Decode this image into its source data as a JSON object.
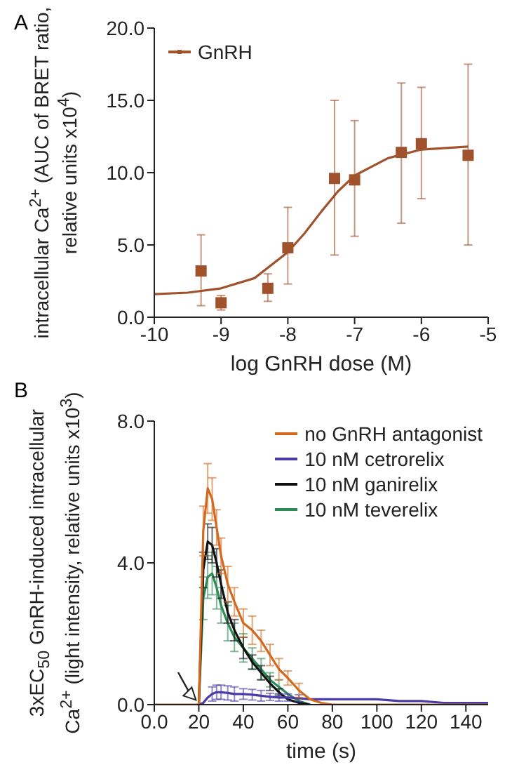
{
  "chart_data": [
    {
      "type": "scatter",
      "title": "A",
      "xlabel": "log GnRH dose (M)",
      "ylabel": "intracellular Ca$^{2+}$ (AUC of BRET ratio, relative units x10$^{4}$)",
      "xlim": [
        -10,
        -5
      ],
      "xticks": [
        -10,
        -9,
        -8,
        -7,
        -6,
        -5
      ],
      "ylim": [
        0,
        20
      ],
      "yticks": [
        {
          "value": 0,
          "label": "0.0"
        },
        {
          "value": 5,
          "label": "5.0"
        },
        {
          "value": 10,
          "label": "10.0"
        },
        {
          "value": 15,
          "label": "15.0"
        },
        {
          "value": 20,
          "label": "20.0"
        }
      ],
      "marker": "square",
      "legend": "top left",
      "series": [
        {
          "type": "line",
          "marker": "none",
          "color": "#a0522d",
          "x": [
            -10,
            -9.5,
            -9,
            -8.5,
            -8,
            -7.75,
            -7.5,
            -7.25,
            -7,
            -6.5,
            -6,
            -5.3
          ],
          "values": [
            1.6,
            1.7,
            2.0,
            2.7,
            4.5,
            5.8,
            7.3,
            8.7,
            9.8,
            11.0,
            11.6,
            11.8
          ]
        },
        {
          "name": "GnRH",
          "color": "#a0522d",
          "x": [
            -9.3,
            -9,
            -8.3,
            -8,
            -7.3,
            -7,
            -6.3,
            -6,
            -5.3
          ],
          "values": [
            3.2,
            1.0,
            2.0,
            4.8,
            9.6,
            9.5,
            11.4,
            12.0,
            11.2
          ],
          "errors": [
            [
              0.8,
              5.7
            ],
            [
              0.5,
              1.5
            ],
            [
              1.1,
              3.0
            ],
            [
              2.3,
              7.6
            ],
            [
              4.3,
              15.0
            ],
            [
              5.6,
              13.6
            ],
            [
              6.5,
              16.2
            ],
            [
              8.2,
              15.9
            ],
            [
              5.0,
              17.5
            ]
          ]
        }
      ]
    },
    {
      "type": "line",
      "title": "B",
      "xlabel": "time (s)",
      "ylabel": "3xEC$_{50}$ GnRH-induced intracellular Ca$^{2+}$ (light intensity, relative units x10$^{3}$)",
      "xlim": [
        0,
        150
      ],
      "xticks": [
        {
          "value": 0,
          "label": "0.0"
        },
        20,
        40,
        60,
        80,
        100,
        120,
        140
      ],
      "ylim": [
        0,
        8
      ],
      "yticks": [
        {
          "value": 0,
          "label": "0.0"
        },
        {
          "value": 4,
          "label": "4.0"
        },
        {
          "value": 8,
          "label": "8.0"
        }
      ],
      "marker": "none",
      "legend": "top right",
      "x": [
        0,
        5,
        10,
        15,
        20,
        22,
        24,
        26,
        28,
        30,
        33,
        36,
        40,
        44,
        48,
        52,
        56,
        60,
        65,
        70,
        75,
        80,
        90,
        100,
        110,
        120,
        130,
        140,
        150
      ],
      "series": [
        {
          "name": "no GnRH antagonist",
          "color": "#d2691e",
          "values": [
            0,
            0,
            0,
            0,
            0,
            4.9,
            6.1,
            5.8,
            5.0,
            4.2,
            3.4,
            2.9,
            2.3,
            2.1,
            1.8,
            1.4,
            1.0,
            0.75,
            0.4,
            0.15,
            0.05,
            0,
            0,
            0,
            0,
            0,
            0,
            0,
            0
          ],
          "errors": [
            null,
            null,
            null,
            null,
            null,
            0.7,
            0.7,
            0.6,
            0.5,
            0.5,
            0.5,
            0.4,
            0.4,
            0.4,
            0.3,
            0.3,
            0.3,
            0.2,
            0.2,
            null,
            null,
            null,
            null,
            null,
            null,
            null,
            null,
            null,
            null
          ]
        },
        {
          "name": "10 nM cetrorelix",
          "color": "#4b3ba8",
          "values": [
            null,
            null,
            null,
            null,
            0,
            0.05,
            0.2,
            0.3,
            0.35,
            0.35,
            0.33,
            0.3,
            0.3,
            0.28,
            0.25,
            0.22,
            0.2,
            0.2,
            0.18,
            0.15,
            0.15,
            0.15,
            0.15,
            0.15,
            0.1,
            0.1,
            0.05,
            0.05,
            0.05
          ],
          "errors": [
            null,
            null,
            null,
            null,
            null,
            null,
            null,
            0.2,
            0.2,
            0.2,
            0.2,
            0.2,
            0.15,
            0.15,
            0.15,
            0.1,
            0.1,
            0.1,
            0.1,
            null,
            null,
            null,
            null,
            null,
            null,
            null,
            null,
            null,
            null
          ]
        },
        {
          "name": "10 nM ganirelix",
          "color": "#111111",
          "values": [
            null,
            null,
            null,
            null,
            0,
            3.8,
            4.6,
            4.5,
            4.0,
            3.4,
            2.6,
            2.1,
            1.6,
            1.2,
            0.9,
            0.6,
            0.35,
            0.15,
            0.05,
            0,
            null,
            null,
            null,
            null,
            null,
            null,
            null,
            null,
            null
          ],
          "errors": [
            null,
            null,
            null,
            null,
            null,
            0.5,
            0.5,
            0.5,
            0.4,
            0.4,
            0.3,
            0.3,
            0.3,
            0.2,
            0.2,
            0.2,
            0.1,
            null,
            null,
            null,
            null,
            null,
            null,
            null,
            null,
            null,
            null,
            null,
            null
          ]
        },
        {
          "name": "10 nM teverelix",
          "color": "#2e8b57",
          "values": [
            null,
            null,
            null,
            null,
            0,
            3.0,
            3.6,
            3.7,
            3.3,
            2.8,
            2.3,
            1.9,
            1.6,
            1.3,
            1.0,
            0.7,
            0.5,
            0.3,
            0.1,
            0,
            null,
            null,
            null,
            null,
            null,
            null,
            null,
            null,
            null
          ],
          "errors": [
            null,
            null,
            null,
            null,
            null,
            0.6,
            0.6,
            0.6,
            0.6,
            0.5,
            0.5,
            0.4,
            0.4,
            0.3,
            0.3,
            0.2,
            0.2,
            null,
            null,
            null,
            null,
            null,
            null,
            null,
            null,
            null,
            null,
            null,
            null
          ]
        }
      ]
    }
  ]
}
